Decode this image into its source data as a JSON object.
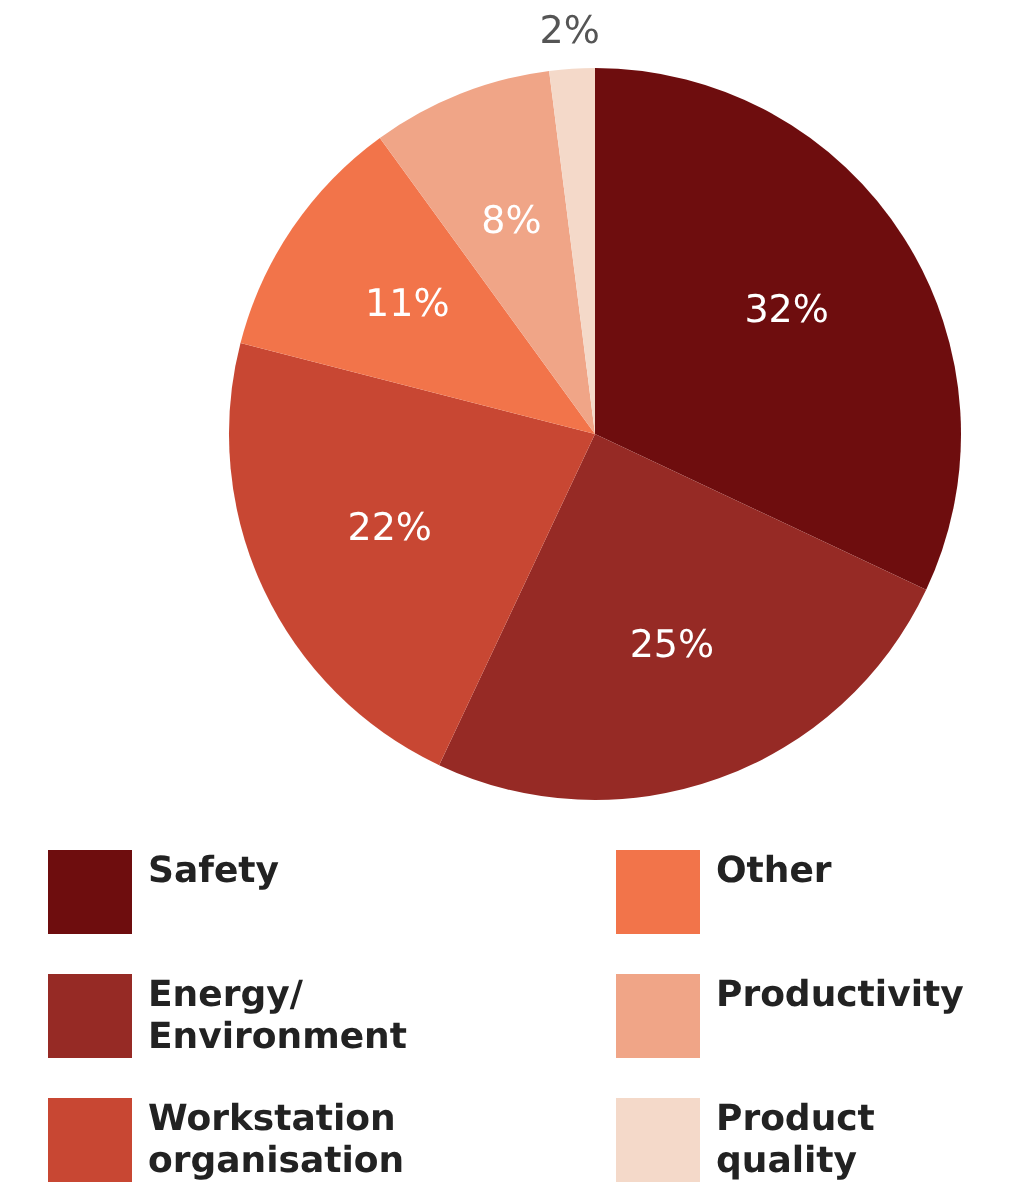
{
  "chart_data": {
    "type": "pie",
    "categories": [
      "Safety",
      "Energy/\nEnvironment",
      "Workstation organisation",
      "Other",
      "Productivity",
      "Product quality"
    ],
    "values": [
      32,
      25,
      22,
      11,
      8,
      2
    ],
    "colors": [
      "#6e0d0e",
      "#962a25",
      "#c84733",
      "#f2744a",
      "#f0a587",
      "#f4d9c9"
    ],
    "value_labels": [
      "32%",
      "25%",
      "22%",
      "11%",
      "8%",
      "2%"
    ],
    "legend": "bottom"
  }
}
